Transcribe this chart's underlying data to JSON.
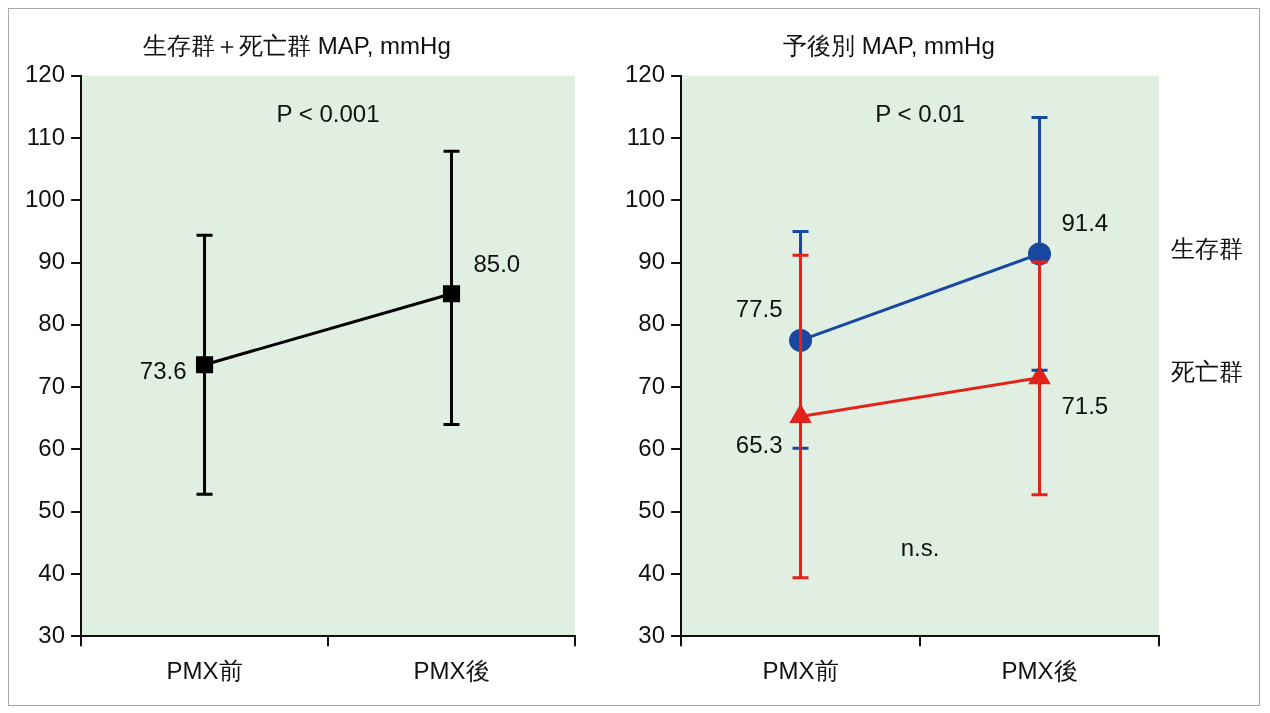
{
  "chart_data": [
    {
      "type": "line",
      "title": "生存群＋死亡群 MAP, mmHg",
      "categories": [
        "PMX前",
        "PMX後"
      ],
      "series": [
        {
          "color": "#000000",
          "values": [
            73.6,
            85.0
          ],
          "errors": [
            [
              52.8,
              94.4
            ],
            [
              64.0,
              107.9
            ]
          ],
          "value_labels": [
            "73.6",
            "85.0"
          ],
          "marker": "square"
        }
      ],
      "ylim": [
        30,
        120
      ],
      "yticks": [
        30,
        40,
        50,
        60,
        70,
        80,
        90,
        100,
        110,
        120
      ],
      "grid": false,
      "annotations": [
        "P < 0.001"
      ]
    },
    {
      "type": "line",
      "title": "予後別 MAP, mmHg",
      "categories": [
        "PMX前",
        "PMX後"
      ],
      "series": [
        {
          "name": "生存群",
          "color": "#1a47a0",
          "values": [
            77.5,
            91.4
          ],
          "errors": [
            [
              60.2,
              95.0
            ],
            [
              72.7,
              113.3
            ]
          ],
          "value_labels": [
            "77.5",
            "91.4"
          ],
          "marker": "circle"
        },
        {
          "name": "死亡群",
          "color": "#e3221b",
          "values": [
            65.3,
            71.5
          ],
          "errors": [
            [
              39.4,
              91.2
            ],
            [
              52.7,
              90.1
            ]
          ],
          "value_labels": [
            "65.3",
            "71.5"
          ],
          "marker": "triangle"
        }
      ],
      "ylim": [
        30,
        120
      ],
      "yticks": [
        30,
        40,
        50,
        60,
        70,
        80,
        90,
        100,
        110,
        120
      ],
      "grid": false,
      "annotations": [
        "P < 0.01",
        "n.s."
      ]
    }
  ]
}
